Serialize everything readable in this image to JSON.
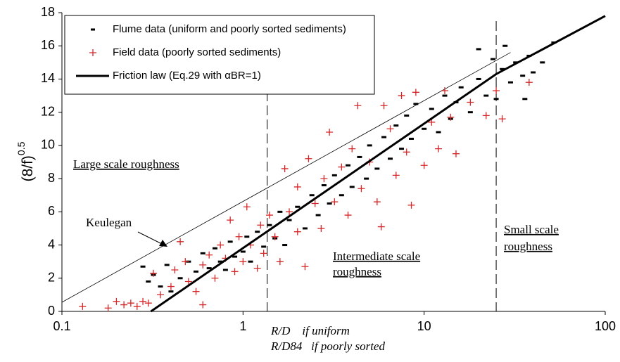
{
  "chart_data": {
    "type": "scatter",
    "x_label": [
      "R/D    if uniform",
      "R/D84   if poorly sorted"
    ],
    "y_label": {
      "base": "(8/f)",
      "exponent": "0.5"
    },
    "xlim": [
      0.1,
      100
    ],
    "xticks": [
      0.1,
      1,
      10,
      100
    ],
    "xscale": "log",
    "ylim": [
      0,
      18
    ],
    "yticks": [
      0,
      2,
      4,
      6,
      8,
      10,
      12,
      14,
      16,
      18
    ],
    "vlines": [
      1.36,
      25
    ],
    "series": [
      {
        "name": "Flume data (uniform and poorly sorted sediments)",
        "color": "#000000",
        "marker": "dash",
        "x": [
          0.28,
          0.3,
          0.32,
          0.35,
          0.38,
          0.4,
          0.45,
          0.5,
          0.55,
          0.6,
          0.65,
          0.7,
          0.75,
          0.8,
          0.85,
          0.9,
          1.0,
          1.05,
          1.1,
          1.2,
          1.3,
          1.4,
          1.5,
          1.6,
          1.7,
          1.8,
          2.0,
          2.2,
          2.4,
          2.6,
          2.8,
          3.0,
          3.2,
          3.5,
          3.8,
          4.0,
          4.4,
          4.8,
          5.0,
          5.5,
          6.0,
          6.5,
          7.0,
          7.5,
          8.0,
          8.5,
          9.0,
          10,
          11,
          12,
          13,
          14,
          15,
          16,
          18,
          20,
          20,
          22,
          24,
          25,
          27,
          28,
          30,
          32,
          35,
          38,
          40,
          45,
          52,
          36
        ],
        "values": [
          2.7,
          1.8,
          2.2,
          1.5,
          2.8,
          1.2,
          2.0,
          3.0,
          2.4,
          3.5,
          2.6,
          3.8,
          3.0,
          2.5,
          4.2,
          3.3,
          3.6,
          4.5,
          3.0,
          4.8,
          3.9,
          5.2,
          4.4,
          6.0,
          4.0,
          5.5,
          6.3,
          5.0,
          7.0,
          5.8,
          7.6,
          6.5,
          8.2,
          7.0,
          8.8,
          7.5,
          9.3,
          8.0,
          10.0,
          8.6,
          10.5,
          9.2,
          11.2,
          9.8,
          11.8,
          10.4,
          12.5,
          11.0,
          12.2,
          10.8,
          13.0,
          11.6,
          12.6,
          13.5,
          12.0,
          14.0,
          15.8,
          13.0,
          15.2,
          12.8,
          14.6,
          16.0,
          13.8,
          15.0,
          14.2,
          15.4,
          14.4,
          15.0,
          16.2,
          12.8
        ]
      },
      {
        "name": "Field data (poorly sorted sediments)",
        "color": "#d62728",
        "marker": "plus",
        "x": [
          0.13,
          0.18,
          0.2,
          0.22,
          0.24,
          0.26,
          0.28,
          0.3,
          0.32,
          0.35,
          0.4,
          0.42,
          0.45,
          0.48,
          0.5,
          0.55,
          0.6,
          0.6,
          0.65,
          0.7,
          0.75,
          0.8,
          0.85,
          0.9,
          0.95,
          1.0,
          1.05,
          1.1,
          1.2,
          1.25,
          1.3,
          1.4,
          1.5,
          1.6,
          1.7,
          1.8,
          2.0,
          2.0,
          2.2,
          2.3,
          2.5,
          2.7,
          2.8,
          3.0,
          3.2,
          3.5,
          3.8,
          4.0,
          4.3,
          4.5,
          5.0,
          5.5,
          5.8,
          6.0,
          6.5,
          7.0,
          7.5,
          8.0,
          8.5,
          9.0,
          10,
          11,
          12,
          13,
          14,
          15,
          18,
          22,
          25,
          27,
          38
        ],
        "values": [
          0.3,
          0.2,
          0.6,
          0.4,
          0.5,
          0.3,
          0.6,
          0.5,
          2.3,
          1.0,
          1.5,
          2.5,
          4.2,
          3.0,
          1.8,
          1.2,
          2.8,
          0.4,
          3.4,
          2.0,
          4.0,
          3.2,
          5.5,
          2.4,
          4.5,
          3.0,
          6.3,
          4.0,
          2.6,
          5.2,
          3.5,
          5.8,
          4.5,
          3.0,
          8.6,
          6.0,
          4.8,
          7.5,
          2.7,
          9.2,
          6.5,
          5.0,
          8.0,
          10.8,
          6.6,
          8.7,
          5.8,
          9.8,
          12.4,
          7.4,
          9.0,
          6.6,
          5.1,
          12.4,
          11.0,
          8.2,
          13.0,
          9.6,
          6.4,
          13.2,
          8.8,
          11.4,
          9.8,
          13.3,
          11.7,
          9.5,
          12.6,
          11.8,
          13.3,
          11.6,
          13.8
        ]
      },
      {
        "name": "Friction law  (Eq.29 with αBR=1)",
        "color": "#000000",
        "marker": "line",
        "x": [
          0.31,
          25,
          100
        ],
        "values": [
          0,
          14.3,
          17.8
        ]
      }
    ],
    "keulegan": {
      "label": "Keulegan",
      "x": [
        0.1,
        30
      ],
      "values": [
        0.55,
        15.6
      ]
    },
    "annotations": [
      "Large scale roughness",
      "Intermediate scale",
      "roughness",
      "Small scale",
      "roughness"
    ]
  }
}
